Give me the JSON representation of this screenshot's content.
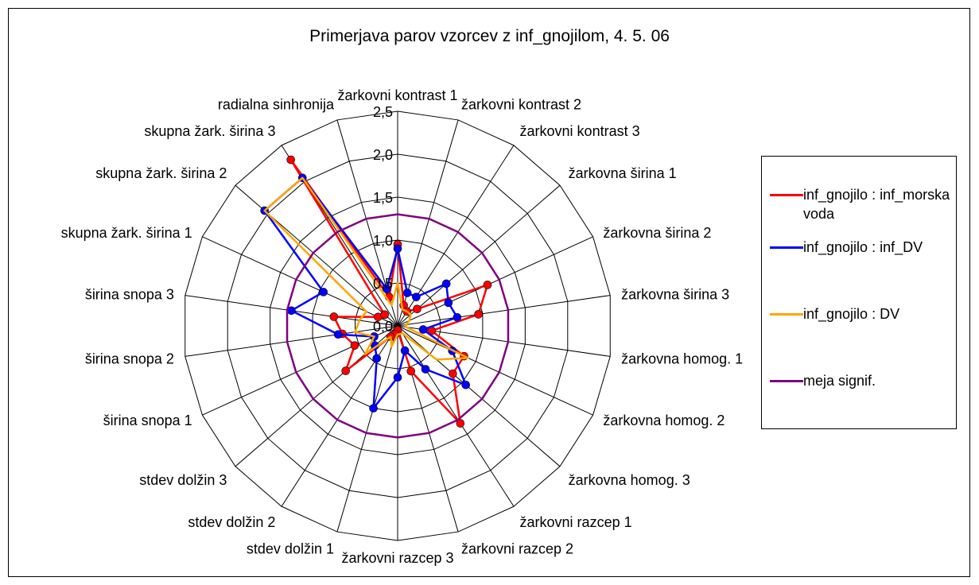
{
  "chart_data": {
    "type": "radar",
    "title": "Primerjava parov vzorcev z inf_gnojilom, 4. 5. 06",
    "categories": [
      "žarkovni kontrast 1",
      "žarkovni kontrast 2",
      "žarkovni kontrast 3",
      "žarkovna širina 1",
      "žarkovna širina 2",
      "žarkovna širina 3",
      "žarkovna homog. 1",
      "žarkovna homog. 2",
      "žarkovna homog. 3",
      "žarkovni razcep 1",
      "žarkovni razcep 2",
      "žarkovni razcep 3",
      "stdev dolžin 1",
      "stdev dolžin 2",
      "stdev dolžin 3",
      "širina snopa 1",
      "širina snopa 2",
      "širina snopa 3",
      "skupna žark. širina 1",
      "skupna žark. širina 2",
      "skupna žark. širina 3",
      "radialna sinhronija"
    ],
    "rlim": [
      0,
      2.5
    ],
    "ticks": [
      "0,0",
      "0,5",
      "1,0",
      "1,5",
      "2,0",
      "2,5"
    ],
    "tick_values": [
      0,
      0.5,
      1.0,
      1.5,
      2.0,
      2.5
    ],
    "series": [
      {
        "name": "inf_gnojilo : inf_morska voda",
        "color": "#ff0000",
        "marker": "circle",
        "values": [
          0.95,
          0.25,
          0.2,
          0.3,
          1.15,
          0.95,
          0.4,
          0.85,
          0.85,
          1.35,
          0.55,
          0.05,
          0.1,
          0.15,
          0.8,
          0.55,
          0.65,
          0.75,
          0.25,
          0.2,
          2.3,
          0.35
        ]
      },
      {
        "name": "inf_gnojilo : inf_DV",
        "color": "#0000ff",
        "marker": "circle",
        "values": [
          0.9,
          0.4,
          0.4,
          0.75,
          0.65,
          0.7,
          0.3,
          0.7,
          1.05,
          0.6,
          0.3,
          0.6,
          1.0,
          0.45,
          0.35,
          0.3,
          0.7,
          1.25,
          0.95,
          2.05,
          2.05,
          0.45
        ]
      },
      {
        "name": "inf_gnojilo : DV",
        "color": "#ffa500",
        "marker": "none",
        "values": [
          0.5,
          0.2,
          0.2,
          0.2,
          0.15,
          0.1,
          0.1,
          0.9,
          0.6,
          0.1,
          0.1,
          0.1,
          0.25,
          0.15,
          0.5,
          0.3,
          0.5,
          0.45,
          0.4,
          2.05,
          2.05,
          0.25
        ]
      },
      {
        "name": "meja signif.",
        "color": "#800080",
        "marker": "none",
        "values": [
          1.3,
          1.3,
          1.3,
          1.3,
          1.3,
          1.3,
          1.3,
          1.3,
          1.3,
          1.3,
          1.3,
          1.3,
          1.3,
          1.3,
          1.3,
          1.3,
          1.3,
          1.3,
          1.3,
          1.3,
          1.3,
          1.3
        ]
      }
    ],
    "legend": "right",
    "grid": true
  }
}
